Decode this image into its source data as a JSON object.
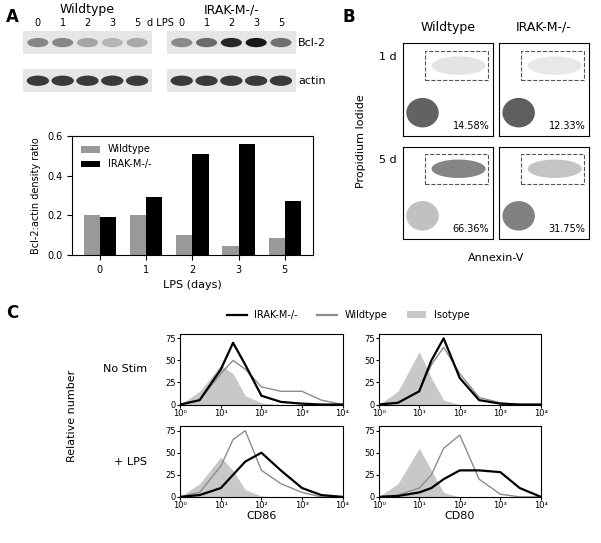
{
  "panel_labels": [
    "A",
    "B",
    "C"
  ],
  "blot": {
    "groups": [
      "Wildtype",
      "IRAK-M-/-"
    ],
    "lane_title": "d LPS",
    "rows": [
      "Bcl-2",
      "actin"
    ]
  },
  "chart_data": {
    "type": "bar",
    "categories": [
      "0",
      "1",
      "2",
      "3",
      "5"
    ],
    "x_label": "LPS (days)",
    "y_label": "Bcl-2:actin density ratio",
    "ylim": [
      0,
      0.6
    ],
    "yticks": [
      {
        "value": 0,
        "label": "0.0"
      },
      0.2,
      0.4,
      0.6
    ],
    "legend": "upper left",
    "series": [
      {
        "name": "Wildtype",
        "color": "#999999",
        "values": [
          0.2,
          0.2,
          0.1,
          0.045,
          0.085
        ]
      },
      {
        "name": "IRAK-M-/-",
        "color": "#000000",
        "values": [
          0.19,
          0.29,
          0.51,
          0.56,
          0.27
        ]
      }
    ]
  },
  "flow": {
    "type": "scatter",
    "x_label": "Annexin-V",
    "y_label": "Propidium Iodide",
    "columns": [
      "Wildtype",
      "IRAK-M-/-"
    ],
    "rows": [
      "1 d",
      "5 d"
    ],
    "gated_percent": [
      [
        14.58,
        12.33
      ],
      [
        66.36,
        31.75
      ]
    ],
    "value_labels": [
      [
        "14.58%",
        "12.33%"
      ],
      [
        "66.36%",
        "31.75%"
      ]
    ],
    "tick_labels": false
  },
  "histograms": {
    "type": "line",
    "y_label": "Relative number",
    "rows": [
      "No Stim",
      "+ LPS"
    ],
    "columns": [
      "CD86",
      "CD80"
    ],
    "log": "x",
    "xlim": [
      1,
      10000
    ],
    "xticks": [
      {
        "value": 1,
        "label": "10⁰"
      },
      {
        "value": 10,
        "label": "10¹"
      },
      {
        "value": 100,
        "label": "10²"
      },
      {
        "value": 1000,
        "label": "10³"
      },
      {
        "value": 10000,
        "label": "10⁴"
      }
    ],
    "ylim": [
      0,
      80
    ],
    "yticks": [
      0,
      25,
      50,
      75
    ],
    "legend": "upper center",
    "x": [
      1,
      3,
      10,
      20,
      40,
      100,
      300,
      1000,
      3000,
      10000
    ],
    "series": [
      {
        "name": "IRAK-M-/-",
        "color": "#000000",
        "type": "line"
      },
      {
        "name": "Wildtype",
        "color": "#8c8c8c",
        "type": "line"
      },
      {
        "name": "Isotype",
        "color": "#c8c8c8",
        "type": "area"
      }
    ],
    "values": [
      [
        {
          "IRAK-M-/-": [
            0,
            5,
            40,
            70,
            45,
            10,
            3,
            1,
            0,
            0
          ],
          "Wildtype": [
            0,
            5,
            35,
            50,
            40,
            20,
            15,
            15,
            5,
            0
          ],
          "Isotype": [
            0,
            15,
            45,
            35,
            10,
            2,
            0,
            0,
            0,
            0
          ]
        },
        {
          "IRAK-M-/-": [
            0,
            2,
            15,
            50,
            75,
            30,
            5,
            1,
            0,
            0
          ],
          "Wildtype": [
            0,
            2,
            15,
            45,
            65,
            35,
            8,
            2,
            0,
            0
          ],
          "Isotype": [
            0,
            15,
            60,
            30,
            5,
            0,
            0,
            0,
            0,
            0
          ]
        }
      ],
      [
        {
          "IRAK-M-/-": [
            0,
            2,
            10,
            25,
            40,
            50,
            30,
            10,
            2,
            0
          ],
          "Wildtype": [
            0,
            5,
            35,
            65,
            75,
            30,
            15,
            5,
            0,
            0
          ],
          "Isotype": [
            0,
            15,
            45,
            30,
            8,
            1,
            0,
            0,
            0,
            0
          ]
        },
        {
          "IRAK-M-/-": [
            0,
            1,
            5,
            10,
            20,
            30,
            30,
            28,
            10,
            0
          ],
          "Wildtype": [
            0,
            2,
            10,
            25,
            55,
            70,
            20,
            3,
            0,
            0
          ],
          "Isotype": [
            0,
            15,
            55,
            30,
            5,
            0,
            0,
            0,
            0,
            0
          ]
        }
      ]
    ]
  }
}
